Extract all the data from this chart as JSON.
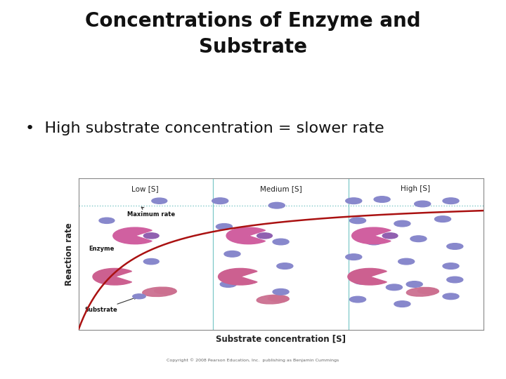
{
  "title": "Concentrations of Enzyme and\nSubstrate",
  "bullet": "High substrate concentration = slower rate",
  "title_fontsize": 20,
  "bullet_fontsize": 16,
  "background_color": "#ffffff",
  "diagram": {
    "xlabel": "Substrate concentration [S]",
    "ylabel": "Reaction rate",
    "copyright": "Copyright © 2008 Pearson Education, Inc.  publishing as Benjamin Cummings",
    "section_labels": [
      "Low [S]",
      "Medium [S]",
      "High [S]"
    ],
    "max_rate_line_color": "#7ec8c8",
    "curve_color": "#aa1111",
    "border_color": "#888888",
    "section_line_color": "#7ec8c8",
    "enzyme_color": "#d060a0",
    "substrate_dot_color": "#8888cc",
    "substrate_blob_color": "#cc7090"
  }
}
